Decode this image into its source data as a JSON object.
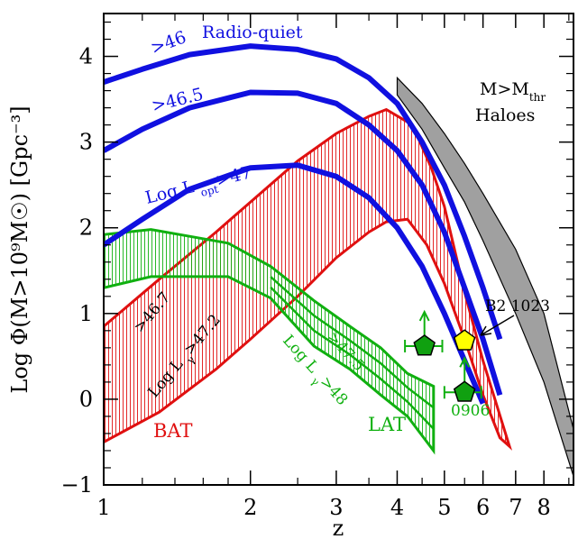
{
  "chart_data": {
    "type": "line",
    "xlabel": "z",
    "ylabel": "Log Φ(M>10⁹M☉) [Gpc⁻³]",
    "x_scale": "log",
    "xlim": [
      1,
      9.2
    ],
    "ylim": [
      -1,
      4.5
    ],
    "x_ticks": [
      1,
      2,
      3,
      4,
      5,
      6,
      7,
      8
    ],
    "x_tick_labels": [
      "1",
      "2",
      "3",
      "4",
      "5",
      "6",
      "7",
      "8"
    ],
    "y_ticks": [
      -1,
      0,
      1,
      2,
      3,
      4
    ],
    "y_tick_labels": [
      "−1",
      "0",
      "1",
      "2",
      "3",
      "4"
    ],
    "colors": {
      "radio_quiet": "#1010e0",
      "bat": "#e01010",
      "lat": "#10b010",
      "haloes": "#a0a0a0",
      "marker_green": "#10a010",
      "marker_yellow": "#ffff00"
    },
    "curves": [
      {
        "name": "Radio-quiet >46",
        "label": ">46",
        "color": "#1010e0",
        "points": [
          [
            1,
            3.7
          ],
          [
            1.2,
            3.85
          ],
          [
            1.5,
            4.02
          ],
          [
            2,
            4.12
          ],
          [
            2.5,
            4.08
          ],
          [
            3,
            3.97
          ],
          [
            3.5,
            3.75
          ],
          [
            4,
            3.45
          ],
          [
            4.5,
            3.0
          ],
          [
            5,
            2.5
          ],
          [
            5.5,
            1.9
          ],
          [
            6,
            1.3
          ],
          [
            6.5,
            0.7
          ]
        ]
      },
      {
        "name": "Radio-quiet >46.5",
        "label": ">46.5",
        "color": "#1010e0",
        "points": [
          [
            1,
            2.9
          ],
          [
            1.2,
            3.15
          ],
          [
            1.5,
            3.4
          ],
          [
            2,
            3.58
          ],
          [
            2.5,
            3.57
          ],
          [
            3,
            3.45
          ],
          [
            3.5,
            3.2
          ],
          [
            4,
            2.9
          ],
          [
            4.5,
            2.5
          ],
          [
            5,
            1.95
          ],
          [
            5.5,
            1.3
          ],
          [
            6,
            0.7
          ],
          [
            6.5,
            0.05
          ]
        ]
      },
      {
        "name": "Radio-quiet Log L_opt>47",
        "label": "Log L",
        "label_sub": "opt",
        "label_tail": ">47",
        "color": "#1010e0",
        "points": [
          [
            1,
            1.8
          ],
          [
            1.2,
            2.1
          ],
          [
            1.5,
            2.45
          ],
          [
            2,
            2.7
          ],
          [
            2.5,
            2.73
          ],
          [
            3,
            2.6
          ],
          [
            3.5,
            2.35
          ],
          [
            4,
            2.0
          ],
          [
            4.5,
            1.55
          ],
          [
            5,
            1.0
          ],
          [
            5.5,
            0.45
          ],
          [
            6,
            -0.05
          ]
        ]
      }
    ],
    "bands": [
      {
        "name": "BAT",
        "label": "BAT",
        "color": "#e01010",
        "upper": [
          [
            1,
            0.85
          ],
          [
            1.3,
            1.4
          ],
          [
            1.7,
            1.95
          ],
          [
            2,
            2.3
          ],
          [
            2.5,
            2.78
          ],
          [
            3,
            3.1
          ],
          [
            3.5,
            3.3
          ],
          [
            3.8,
            3.38
          ],
          [
            4.3,
            3.2
          ],
          [
            4.7,
            2.7
          ],
          [
            5,
            2.25
          ],
          [
            5.5,
            1.25
          ],
          [
            6,
            0.45
          ],
          [
            6.8,
            -0.55
          ]
        ],
        "lower": [
          [
            1,
            -0.5
          ],
          [
            1.3,
            -0.15
          ],
          [
            1.7,
            0.35
          ],
          [
            2,
            0.7
          ],
          [
            2.5,
            1.2
          ],
          [
            3,
            1.65
          ],
          [
            3.5,
            1.95
          ],
          [
            3.8,
            2.07
          ],
          [
            4.2,
            2.1
          ],
          [
            4.6,
            1.8
          ],
          [
            5,
            1.35
          ],
          [
            5.5,
            0.7
          ],
          [
            6,
            0.05
          ],
          [
            6.5,
            -0.45
          ]
        ]
      },
      {
        "name": "LAT",
        "label": "LAT",
        "color": "#10b010",
        "upper": [
          [
            1,
            1.92
          ],
          [
            1.25,
            1.98
          ],
          [
            1.5,
            1.9
          ],
          [
            1.8,
            1.82
          ],
          [
            2.2,
            1.55
          ],
          [
            2.7,
            1.15
          ],
          [
            3.2,
            0.85
          ],
          [
            3.7,
            0.6
          ],
          [
            4.2,
            0.3
          ],
          [
            4.75,
            0.15
          ]
        ],
        "lower": [
          [
            1,
            1.3
          ],
          [
            1.25,
            1.43
          ],
          [
            1.5,
            1.43
          ],
          [
            1.8,
            1.43
          ],
          [
            2.2,
            1.18
          ],
          [
            2.7,
            0.62
          ],
          [
            3.2,
            0.35
          ],
          [
            3.7,
            0.05
          ],
          [
            4.2,
            -0.2
          ],
          [
            4.75,
            -0.6
          ]
        ]
      },
      {
        "name": "M>M_thr Haloes",
        "label": "M>M",
        "label_sub": "thr",
        "label_line2": "Haloes",
        "color": "#a0a0a0",
        "upper": [
          [
            4,
            3.75
          ],
          [
            4.5,
            3.45
          ],
          [
            5,
            3.1
          ],
          [
            5.5,
            2.75
          ],
          [
            6,
            2.4
          ],
          [
            7,
            1.75
          ],
          [
            8,
            1.0
          ],
          [
            9.2,
            -0.35
          ]
        ],
        "lower": [
          [
            4,
            3.55
          ],
          [
            4.5,
            3.15
          ],
          [
            5,
            2.7
          ],
          [
            5.5,
            2.3
          ],
          [
            6,
            1.85
          ],
          [
            7,
            1.0
          ],
          [
            8,
            0.2
          ],
          [
            9.2,
            -0.9
          ]
        ]
      }
    ],
    "annotations": [
      {
        "text": "Radio-quiet",
        "color": "#1010e0"
      },
      {
        "text": ">46.7",
        "color": "#000000"
      },
      {
        "text": "Log L",
        "sub": "γ",
        "tail": ">47.2",
        "color": "#000000"
      },
      {
        "text": ">47.5",
        "color": "#10b010"
      },
      {
        "text": "Log L",
        "sub": "γ",
        "tail": ">48",
        "color": "#10b010"
      },
      {
        "text": "B2 1023",
        "color": "#000000"
      },
      {
        "text": "0906",
        "color": "#10b010"
      }
    ],
    "points": [
      {
        "name": "green pentagon",
        "x": 4.55,
        "y": 0.62,
        "x_err": [
          4.15,
          4.95
        ],
        "lower_limit": true,
        "color": "#10a010"
      },
      {
        "name": "B2 1023",
        "x": 5.5,
        "y": 0.68,
        "color": "#ffff00"
      },
      {
        "name": "0906",
        "x": 5.5,
        "y": 0.08,
        "x_err": [
          5.0,
          5.95
        ],
        "lower_limit": true,
        "color": "#10a010"
      }
    ]
  }
}
